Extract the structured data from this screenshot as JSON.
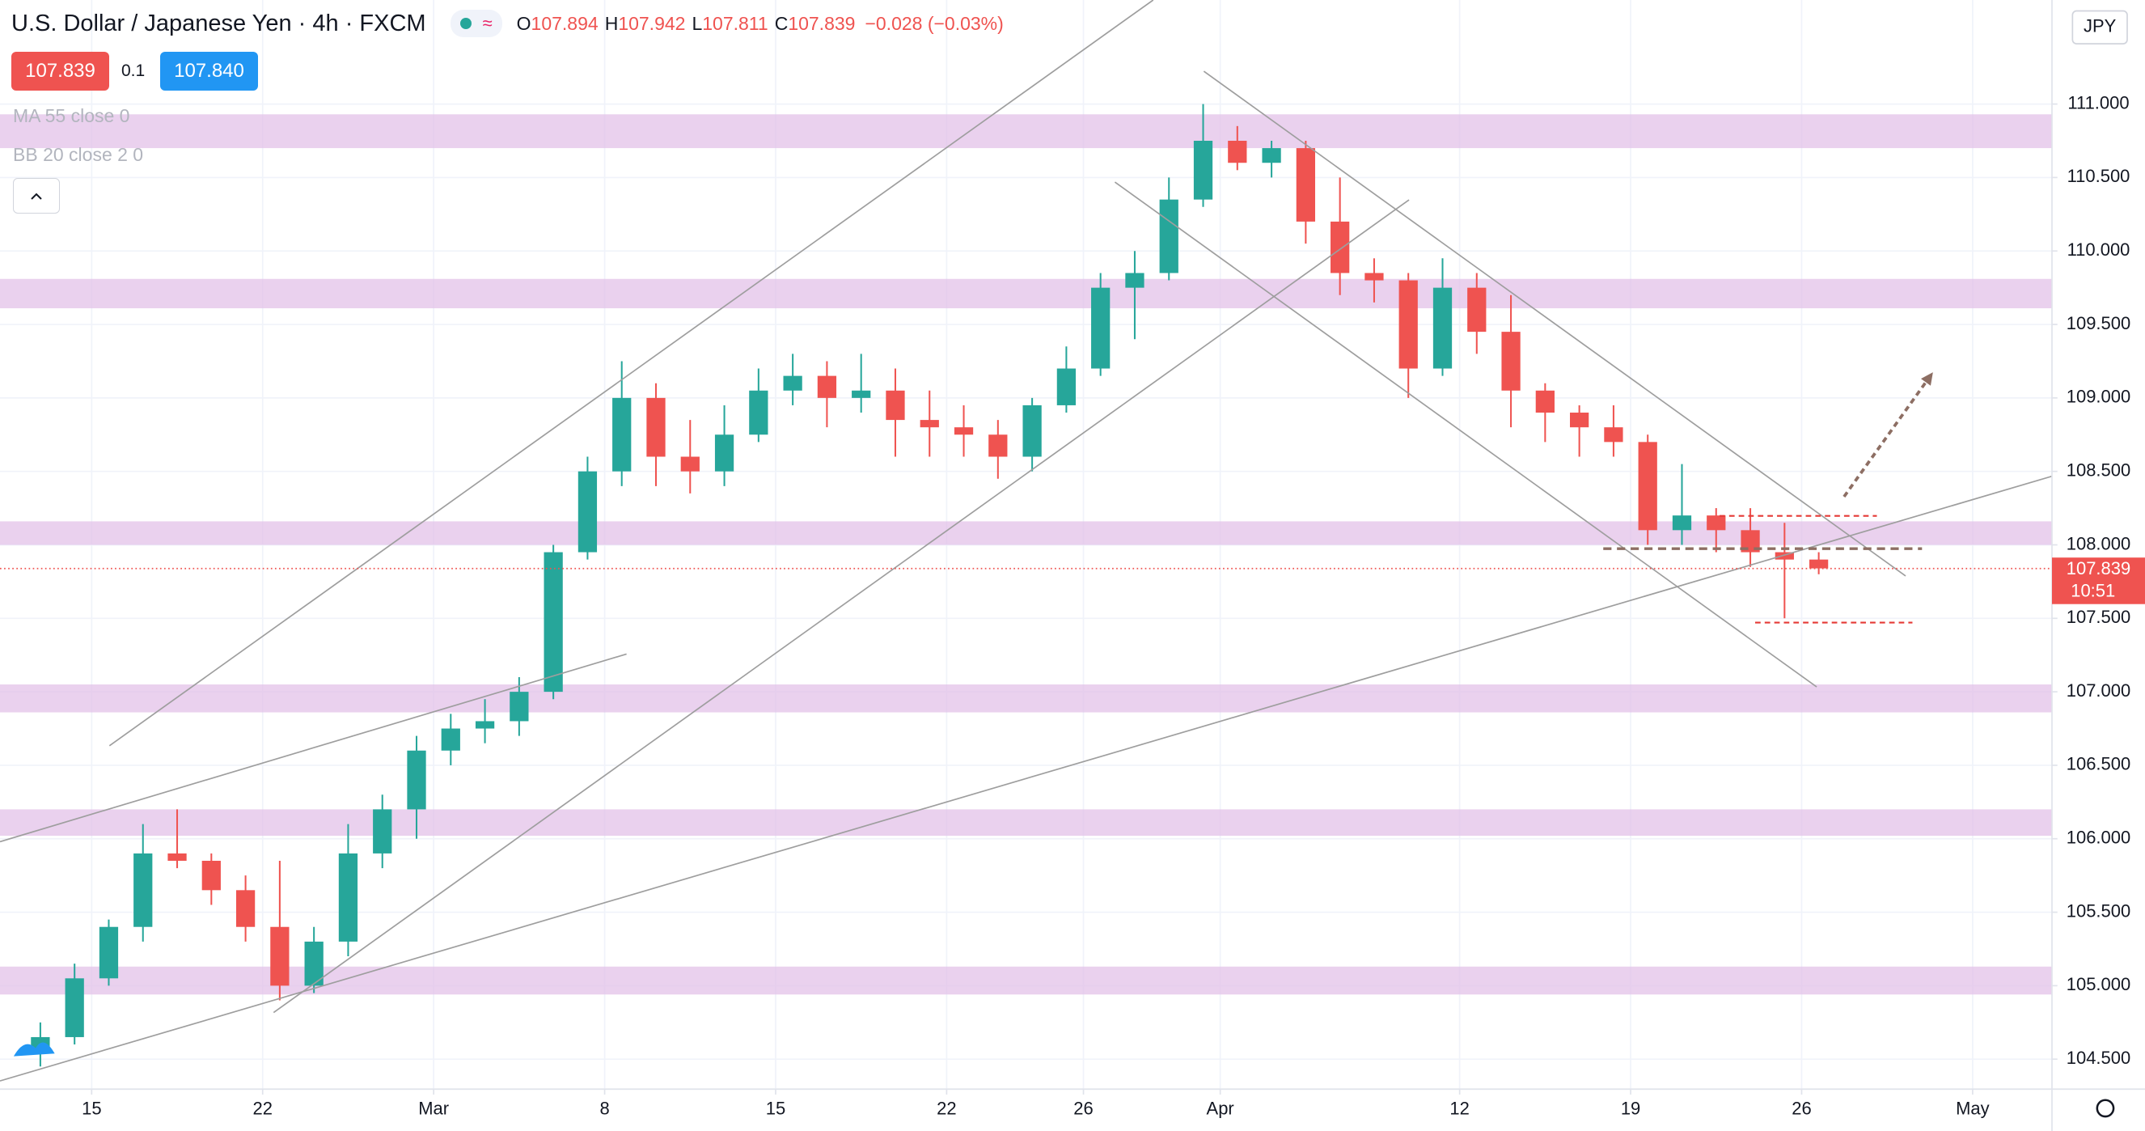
{
  "chart_data": {
    "type": "candlestick",
    "title": "U.S. Dollar / Japanese Yen · 4h · FXCM",
    "ohlc": [
      {
        "label": "O",
        "value": "107.894"
      },
      {
        "label": "H",
        "value": "107.942"
      },
      {
        "label": "L",
        "value": "107.811"
      },
      {
        "label": "C",
        "value": "107.839"
      }
    ],
    "change": "−0.028 (−0.03%)",
    "sell": "107.839",
    "spread": "0.1",
    "buy": "107.840",
    "indicators": [
      "MA 55 close 0",
      "BB 20 close 2 0"
    ],
    "currency": "JPY",
    "countdown": "10:51",
    "last_price": {
      "value": 107.839,
      "label": "107.839"
    },
    "up_color": "#26a69a",
    "down_color": "#ef5350",
    "candles": {
      "x": [
        -1.5,
        -0.5,
        0.5,
        1.5,
        2.5,
        3.5,
        4.5,
        5.5,
        6.5,
        7.5,
        8.5,
        9.5,
        10.5,
        11.5,
        12.5,
        13.5,
        14.5,
        15.5,
        16.5,
        17.5,
        18.5,
        19.5,
        20.5,
        21.5,
        22.5,
        23.5,
        24.5,
        25.5,
        26.5,
        27.5,
        28.5,
        29.5,
        30.5,
        31.5,
        32.5,
        33.5,
        34.5,
        35.5,
        36.5,
        37.5,
        38.5,
        39.5,
        40.5,
        41.5,
        42.5,
        43.5,
        44.5,
        45.5,
        46.5,
        47.5,
        48.5,
        49.5,
        50.5
      ],
      "open": [
        104.55,
        104.65,
        105.05,
        105.4,
        105.9,
        105.85,
        105.65,
        105.4,
        105.0,
        105.3,
        105.9,
        106.2,
        106.6,
        106.75,
        106.8,
        107.0,
        107.95,
        108.5,
        109.0,
        108.6,
        108.5,
        108.75,
        109.05,
        109.15,
        109.0,
        109.05,
        108.85,
        108.8,
        108.75,
        108.6,
        108.95,
        109.2,
        109.75,
        109.85,
        110.35,
        110.75,
        110.6,
        110.7,
        110.2,
        109.85,
        109.8,
        109.2,
        109.75,
        109.45,
        109.05,
        108.9,
        108.8,
        108.7,
        108.1,
        108.2,
        108.1,
        107.95,
        107.9
      ],
      "high": [
        104.75,
        105.15,
        105.45,
        106.1,
        106.2,
        105.9,
        105.75,
        105.85,
        105.4,
        106.1,
        106.3,
        106.7,
        106.85,
        106.95,
        107.1,
        108.0,
        108.6,
        109.25,
        109.1,
        108.85,
        108.95,
        109.2,
        109.3,
        109.25,
        109.3,
        109.2,
        109.05,
        108.95,
        108.85,
        109.0,
        109.35,
        109.85,
        110.0,
        110.5,
        111.0,
        110.85,
        110.75,
        110.75,
        110.5,
        109.95,
        109.85,
        109.95,
        109.85,
        109.7,
        109.1,
        108.95,
        108.95,
        108.75,
        108.55,
        108.25,
        108.25,
        108.15,
        107.95
      ],
      "low": [
        104.45,
        104.6,
        105.0,
        105.3,
        105.8,
        105.55,
        105.3,
        104.9,
        104.95,
        105.2,
        105.8,
        106.0,
        106.5,
        106.65,
        106.7,
        106.95,
        107.9,
        108.4,
        108.4,
        108.35,
        108.4,
        108.7,
        108.95,
        108.8,
        108.9,
        108.6,
        108.6,
        108.6,
        108.45,
        108.5,
        108.9,
        109.15,
        109.4,
        109.8,
        110.3,
        110.55,
        110.5,
        110.05,
        109.7,
        109.65,
        109.0,
        109.15,
        109.3,
        108.8,
        108.7,
        108.6,
        108.6,
        108.0,
        108.0,
        107.95,
        107.85,
        107.5,
        107.8
      ],
      "close": [
        104.65,
        105.05,
        105.4,
        105.9,
        105.85,
        105.65,
        105.4,
        105.0,
        105.3,
        105.9,
        106.2,
        106.6,
        106.75,
        106.8,
        107.0,
        107.95,
        108.5,
        109.0,
        108.6,
        108.5,
        108.75,
        109.05,
        109.15,
        109.0,
        109.05,
        108.85,
        108.8,
        108.75,
        108.6,
        108.95,
        109.2,
        109.75,
        109.85,
        110.35,
        110.75,
        110.6,
        110.7,
        110.2,
        109.85,
        109.8,
        109.2,
        109.75,
        109.45,
        109.05,
        108.9,
        108.8,
        108.7,
        108.1,
        108.2,
        108.1,
        107.95,
        107.9,
        107.84
      ]
    },
    "zones": [
      [
        110.7,
        110.93
      ],
      [
        109.61,
        109.81
      ],
      [
        108.0,
        108.16
      ],
      [
        106.86,
        107.05
      ],
      [
        106.02,
        106.2
      ],
      [
        104.94,
        105.13
      ]
    ],
    "zone_color": "#e1bee7",
    "trend_lines": [
      {
        "x": [
          0.52,
          31.04
        ],
        "y": [
          106.633,
          111.708
        ]
      },
      {
        "x": [
          -2.68,
          15.64
        ],
        "y": [
          105.98,
          107.257
        ]
      },
      {
        "x": [
          5.32,
          38.52
        ],
        "y": [
          104.817,
          110.348
        ]
      },
      {
        "x": [
          -2.68,
          57.32
        ],
        "y": [
          104.352,
          108.467
        ]
      },
      {
        "x": [
          29.92,
          50.44
        ],
        "y": [
          110.469,
          107.033
        ]
      },
      {
        "x": [
          32.52,
          53.04
        ],
        "y": [
          111.223,
          107.788
        ]
      }
    ],
    "line_color": "#9e9e9e",
    "levels": [
      {
        "x": [
          44.2,
          53.52
        ],
        "y": 107.974,
        "color": "#8d6e63"
      },
      {
        "x": [
          47.6,
          52.2
        ],
        "y": 108.197,
        "color": "#e53935"
      },
      {
        "x": [
          48.64,
          53.24
        ],
        "y": 107.471,
        "color": "#e53935"
      }
    ],
    "arrow": {
      "x": [
        51.24,
        53.84
      ],
      "y": [
        108.328,
        109.175
      ],
      "color": "#8d6e63"
    },
    "xlim": [
      -2.68,
      57.32
    ],
    "ylim": [
      104.296,
      111.708
    ],
    "xticks": [
      {
        "value": 0,
        "label": "15"
      },
      {
        "value": 5,
        "label": "22"
      },
      {
        "value": 10,
        "label": "Mar"
      },
      {
        "value": 15,
        "label": "8"
      },
      {
        "value": 20,
        "label": "15"
      },
      {
        "value": 25,
        "label": "22"
      },
      {
        "value": 29,
        "label": "26"
      },
      {
        "value": 33,
        "label": "Apr"
      },
      {
        "value": 40,
        "label": "12"
      },
      {
        "value": 45,
        "label": "19"
      },
      {
        "value": 50,
        "label": "26"
      },
      {
        "value": 55,
        "label": "May"
      }
    ],
    "yticks": [
      {
        "value": 104.5,
        "label": "104.500"
      },
      {
        "value": 105,
        "label": "105.000"
      },
      {
        "value": 105.5,
        "label": "105.500"
      },
      {
        "value": 106,
        "label": "106.000"
      },
      {
        "value": 106.5,
        "label": "106.500"
      },
      {
        "value": 107,
        "label": "107.000"
      },
      {
        "value": 107.5,
        "label": "107.500"
      },
      {
        "value": 108,
        "label": "108.000"
      },
      {
        "value": 108.5,
        "label": "108.500"
      },
      {
        "value": 109,
        "label": "109.000"
      },
      {
        "value": 109.5,
        "label": "109.500"
      },
      {
        "value": 110,
        "label": "110.000"
      },
      {
        "value": 110.5,
        "label": "110.500"
      },
      {
        "value": 111,
        "label": "111.000"
      }
    ],
    "grid": true
  }
}
